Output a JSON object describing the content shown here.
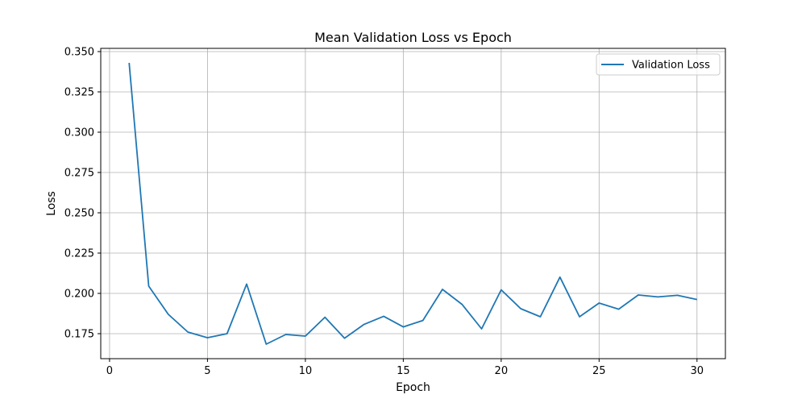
{
  "chart_data": {
    "type": "line",
    "title": "Mean Validation Loss vs Epoch",
    "xlabel": "Epoch",
    "ylabel": "Loss",
    "xlim": [
      -0.45,
      31.45
    ],
    "ylim": [
      0.1595,
      0.352
    ],
    "xticks": [
      0,
      5,
      10,
      15,
      20,
      25,
      30
    ],
    "yticks": [
      0.175,
      0.2,
      0.225,
      0.25,
      0.275,
      0.3,
      0.325,
      0.35
    ],
    "ytick_labels": [
      "0.175",
      "0.200",
      "0.225",
      "0.250",
      "0.275",
      "0.300",
      "0.325",
      "0.350"
    ],
    "grid": true,
    "legend_position": "top-right",
    "series": [
      {
        "name": "Validation Loss",
        "color": "#1f77b4",
        "x": [
          1,
          2,
          3,
          4,
          5,
          6,
          7,
          8,
          9,
          10,
          11,
          12,
          13,
          14,
          15,
          16,
          17,
          18,
          19,
          20,
          21,
          22,
          23,
          24,
          25,
          26,
          27,
          28,
          29,
          30
        ],
        "y": [
          0.343,
          0.2045,
          0.187,
          0.176,
          0.1725,
          0.175,
          0.2058,
          0.1685,
          0.1745,
          0.1735,
          0.1852,
          0.1722,
          0.1808,
          0.1858,
          0.1792,
          0.1832,
          0.2025,
          0.1932,
          0.178,
          0.2022,
          0.1905,
          0.1855,
          0.2101,
          0.1855,
          0.194,
          0.1902,
          0.199,
          0.1978,
          0.1988,
          0.1962
        ]
      }
    ]
  }
}
